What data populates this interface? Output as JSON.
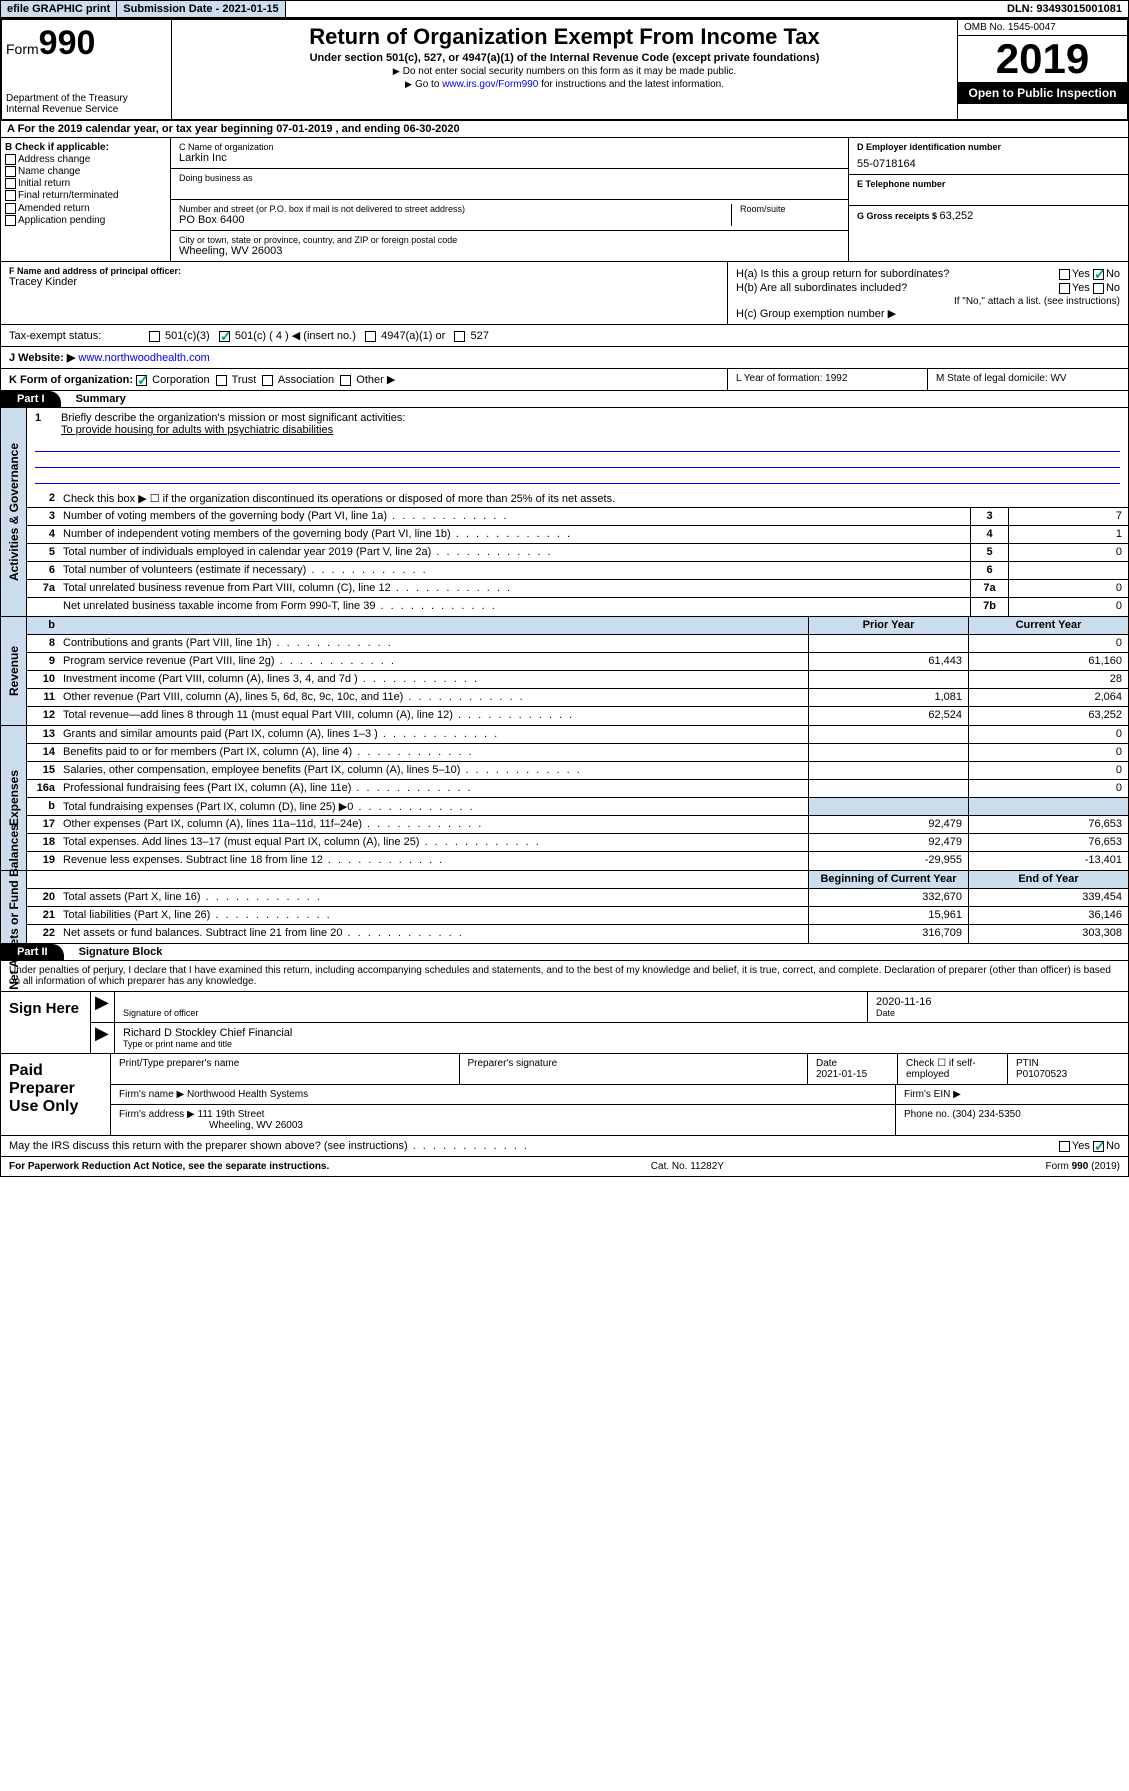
{
  "topbar": {
    "efile": "efile GRAPHIC print",
    "subdate_lbl": "Submission Date - ",
    "subdate": "2021-01-15",
    "dln": "DLN: 93493015001081"
  },
  "header": {
    "form_prefix": "Form",
    "form_num": "990",
    "dept": "Department of the Treasury\nInternal Revenue Service",
    "title": "Return of Organization Exempt From Income Tax",
    "sub": "Under section 501(c), 527, or 4947(a)(1) of the Internal Revenue Code (except private foundations)",
    "note1": "Do not enter social security numbers on this form as it may be made public.",
    "note2_a": "Go to ",
    "note2_link": "www.irs.gov/Form990",
    "note2_b": " for instructions and the latest information.",
    "omb": "OMB No. 1545-0047",
    "year": "2019",
    "inspect": "Open to Public Inspection"
  },
  "rowA": "A For the 2019 calendar year, or tax year beginning 07-01-2019     , and ending 06-30-2020",
  "colB": {
    "hdr": "B Check if applicable:",
    "items": [
      "Address change",
      "Name change",
      "Initial return",
      "Final return/terminated",
      "Amended return",
      "Application pending"
    ]
  },
  "colC": {
    "name_lbl": "C Name of organization",
    "name": "Larkin Inc",
    "dba_lbl": "Doing business as",
    "addr_lbl": "Number and street (or P.O. box if mail is not delivered to street address)",
    "room_lbl": "Room/suite",
    "addr": "PO Box 6400",
    "city_lbl": "City or town, state or province, country, and ZIP or foreign postal code",
    "city": "Wheeling, WV  26003"
  },
  "colD": {
    "ein_lbl": "D Employer identification number",
    "ein": "55-0718164",
    "tel_lbl": "E Telephone number",
    "gross_lbl": "G Gross receipts $ ",
    "gross": "63,252"
  },
  "secF": {
    "lbl": "F  Name and address of principal officer:",
    "name": "Tracey Kinder"
  },
  "secH": {
    "ha": "H(a)  Is this a group return for subordinates?",
    "hb": "H(b)  Are all subordinates included?",
    "hb_note": "If \"No,\" attach a list. (see instructions)",
    "hc": "H(c)  Group exemption number ▶",
    "yes": "Yes",
    "no": "No"
  },
  "rowI": {
    "lbl": "Tax-exempt status:",
    "opts": [
      "501(c)(3)",
      "501(c) ( 4 ) ◀ (insert no.)",
      "4947(a)(1) or",
      "527"
    ]
  },
  "rowJ": {
    "lbl": "J   Website: ▶  ",
    "url": "www.northwoodhealth.com"
  },
  "rowK": {
    "lbl": "K Form of organization:",
    "opts": [
      "Corporation",
      "Trust",
      "Association",
      "Other ▶"
    ]
  },
  "rowL": "L Year of formation: 1992",
  "rowM": "M State of legal domicile: WV",
  "part1": {
    "hdr": "Part I",
    "title": "Summary",
    "l1": "Briefly describe the organization's mission or most significant activities:",
    "mission": "To provide housing for adults with psychiatric disabilities",
    "l2": "Check this box ▶ ☐  if the organization discontinued its operations or disposed of more than 25% of its net assets.",
    "lines_gov": [
      {
        "n": "3",
        "t": "Number of voting members of the governing body (Part VI, line 1a)",
        "an": "3",
        "av": "7"
      },
      {
        "n": "4",
        "t": "Number of independent voting members of the governing body (Part VI, line 1b)",
        "an": "4",
        "av": "1"
      },
      {
        "n": "5",
        "t": "Total number of individuals employed in calendar year 2019 (Part V, line 2a)",
        "an": "5",
        "av": "0"
      },
      {
        "n": "6",
        "t": "Total number of volunteers (estimate if necessary)",
        "an": "6",
        "av": ""
      },
      {
        "n": "7a",
        "t": "Total unrelated business revenue from Part VIII, column (C), line 12",
        "an": "7a",
        "av": "0"
      },
      {
        "n": "",
        "t": "Net unrelated business taxable income from Form 990-T, line 39",
        "an": "7b",
        "av": "0"
      }
    ],
    "col_py": "Prior Year",
    "col_cy": "Current Year",
    "lines_rev": [
      {
        "n": "8",
        "t": "Contributions and grants (Part VIII, line 1h)",
        "py": "",
        "cy": "0"
      },
      {
        "n": "9",
        "t": "Program service revenue (Part VIII, line 2g)",
        "py": "61,443",
        "cy": "61,160"
      },
      {
        "n": "10",
        "t": "Investment income (Part VIII, column (A), lines 3, 4, and 7d )",
        "py": "",
        "cy": "28"
      },
      {
        "n": "11",
        "t": "Other revenue (Part VIII, column (A), lines 5, 6d, 8c, 9c, 10c, and 11e)",
        "py": "1,081",
        "cy": "2,064"
      },
      {
        "n": "12",
        "t": "Total revenue—add lines 8 through 11 (must equal Part VIII, column (A), line 12)",
        "py": "62,524",
        "cy": "63,252"
      }
    ],
    "lines_exp": [
      {
        "n": "13",
        "t": "Grants and similar amounts paid (Part IX, column (A), lines 1–3 )",
        "py": "",
        "cy": "0"
      },
      {
        "n": "14",
        "t": "Benefits paid to or for members (Part IX, column (A), line 4)",
        "py": "",
        "cy": "0"
      },
      {
        "n": "15",
        "t": "Salaries, other compensation, employee benefits (Part IX, column (A), lines 5–10)",
        "py": "",
        "cy": "0"
      },
      {
        "n": "16a",
        "t": "Professional fundraising fees (Part IX, column (A), line 11e)",
        "py": "",
        "cy": "0"
      },
      {
        "n": "b",
        "t": "Total fundraising expenses (Part IX, column (D), line 25) ▶0",
        "py": "shade",
        "cy": "shade"
      },
      {
        "n": "17",
        "t": "Other expenses (Part IX, column (A), lines 11a–11d, 11f–24e)",
        "py": "92,479",
        "cy": "76,653"
      },
      {
        "n": "18",
        "t": "Total expenses. Add lines 13–17 (must equal Part IX, column (A), line 25)",
        "py": "92,479",
        "cy": "76,653"
      },
      {
        "n": "19",
        "t": "Revenue less expenses. Subtract line 18 from line 12",
        "py": "-29,955",
        "cy": "-13,401"
      }
    ],
    "col_boy": "Beginning of Current Year",
    "col_eoy": "End of Year",
    "lines_net": [
      {
        "n": "20",
        "t": "Total assets (Part X, line 16)",
        "py": "332,670",
        "cy": "339,454"
      },
      {
        "n": "21",
        "t": "Total liabilities (Part X, line 26)",
        "py": "15,961",
        "cy": "36,146"
      },
      {
        "n": "22",
        "t": "Net assets or fund balances. Subtract line 21 from line 20",
        "py": "316,709",
        "cy": "303,308"
      }
    ],
    "side_gov": "Activities & Governance",
    "side_rev": "Revenue",
    "side_exp": "Expenses",
    "side_net": "Net Assets or Fund Balances"
  },
  "part2": {
    "hdr": "Part II",
    "title": "Signature Block",
    "decl": "Under penalties of perjury, I declare that I have examined this return, including accompanying schedules and statements, and to the best of my knowledge and belief, it is true, correct, and complete. Declaration of preparer (other than officer) is based on all information of which preparer has any knowledge.",
    "sign_here": "Sign Here",
    "sig_officer": "Signature of officer",
    "sig_date": "2020-11-16",
    "date_lbl": "Date",
    "officer_name": "Richard D Stockley  Chief Financial",
    "type_name": "Type or print name and title",
    "paid": "Paid Preparer Use Only",
    "prep_name_lbl": "Print/Type preparer's name",
    "prep_sig_lbl": "Preparer's signature",
    "prep_date_lbl": "Date",
    "prep_date": "2021-01-15",
    "self_emp": "Check ☐ if self-employed",
    "ptin_lbl": "PTIN",
    "ptin": "P01070523",
    "firm_name_lbl": "Firm's name    ▶",
    "firm_name": "Northwood Health Systems",
    "firm_ein_lbl": "Firm's EIN ▶",
    "firm_addr_lbl": "Firm's address ▶",
    "firm_addr": "111 19th Street",
    "firm_city": "Wheeling, WV  26003",
    "phone_lbl": "Phone no. ",
    "phone": "(304) 234-5350"
  },
  "discuss": "May the IRS discuss this return with the preparer shown above? (see instructions)",
  "footer": {
    "left": "For Paperwork Reduction Act Notice, see the separate instructions.",
    "mid": "Cat. No. 11282Y",
    "right": "Form 990 (2019)"
  }
}
